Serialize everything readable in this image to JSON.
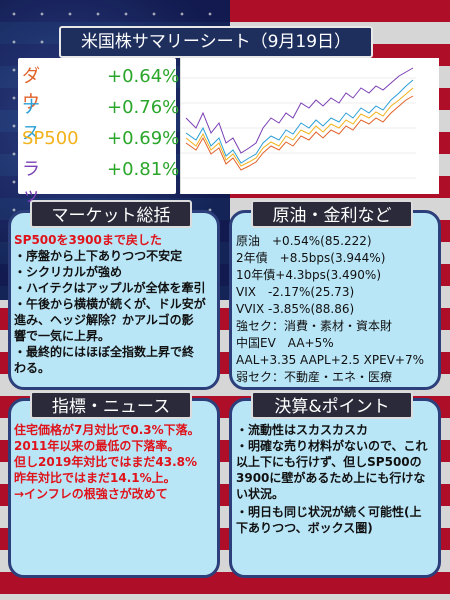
{
  "title": "米国株サマリーシート（9月19日）",
  "indices": [
    {
      "name": "ダウ",
      "value": "+0.64%",
      "color": "#e2622b"
    },
    {
      "name": "ナス",
      "value": "+0.76%",
      "color": "#2b9fd6"
    },
    {
      "name": "SP500",
      "value": "+0.69%",
      "color": "#f2b21b"
    },
    {
      "name": "ラッセル",
      "value": "+0.81%",
      "color": "#7b3fb5"
    }
  ],
  "market": {
    "heading": "マーケット総括",
    "lines": [
      "SP500を3900まで戻した",
      "・序盤から上下ありつつ不安定",
      "・シクリカルが強め",
      "・ハイテクはアップルが全体を牽引",
      "・午後から横横が続くが、ドル安が",
      "進み、ヘッジ解除？かアルゴの影",
      "響で一気に上昇。",
      "・最終的にはほぼ全指数上昇で終",
      "わる。"
    ]
  },
  "commodities": {
    "heading": "原油・金利など",
    "lines": [
      "原油　+0.54%(85.222)",
      "2年債　+8.5bps(3.944%)",
      "10年債+4.3bps(3.490%)",
      "VIX　-2.17%(25.73)",
      "VVIX  -3.85%(88.86)",
      "強セク：消費・素材・資本財",
      "中国EV　AA+5%",
      "AAL+3.35 AAPL+2.5 XPEV+7%",
      "弱セク：不動産・エネ・医療"
    ]
  },
  "news": {
    "heading": "指標・ニュース",
    "lines": [
      "住宅価格が7月対比で0.3%下落。",
      "2011年以来の最低の下落率。",
      "但し2019年対比ではまだ43.8%",
      "昨年対比ではまだ14.1%上。",
      "→インフレの根強さが改めて"
    ]
  },
  "earnings": {
    "heading": "決算&ポイント",
    "lines": [
      "・流動性はスカスカスカ",
      "・明確な売り材料がないので、これ",
      "以上下にも行けず、但しSP500の",
      "3900に壁があるため上にも行けな",
      "い状況。",
      "・明日も同じ状況が続く可能性(上",
      "下ありつつ、ボックス圏)"
    ]
  }
}
